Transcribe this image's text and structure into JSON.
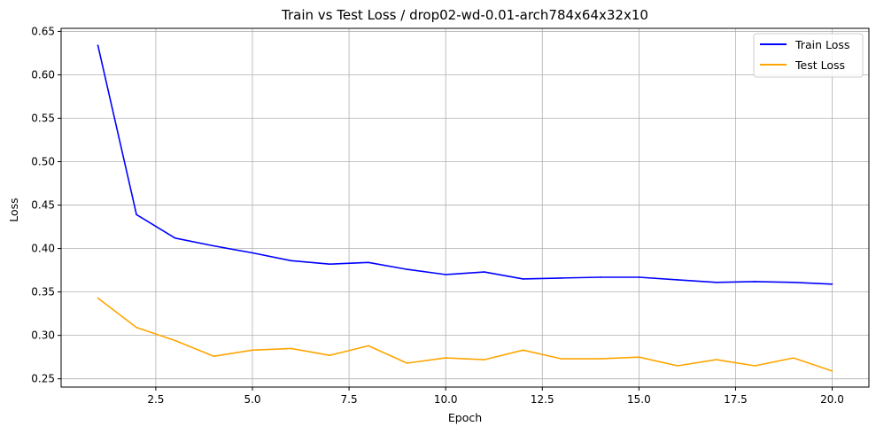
{
  "chart_data": {
    "type": "line",
    "title": "Train vs Test Loss / drop02-wd-0.01-arch784x64x32x10",
    "xlabel": "Epoch",
    "ylabel": "Loss",
    "xlim": [
      0.05,
      20.95
    ],
    "ylim": [
      0.2405,
      0.6535
    ],
    "xticks": [
      2.5,
      5.0,
      7.5,
      10.0,
      12.5,
      15.0,
      17.5,
      20.0
    ],
    "xtick_labels": [
      "2.5",
      "5.0",
      "7.5",
      "10.0",
      "12.5",
      "15.0",
      "17.5",
      "20.0"
    ],
    "yticks": [
      0.25,
      0.3,
      0.35,
      0.4,
      0.45,
      0.5,
      0.55,
      0.6,
      0.65
    ],
    "ytick_labels": [
      "0.25",
      "0.30",
      "0.35",
      "0.40",
      "0.45",
      "0.50",
      "0.55",
      "0.60",
      "0.65"
    ],
    "grid": true,
    "legend_position": "top-right",
    "x": [
      1,
      2,
      3,
      4,
      5,
      6,
      7,
      8,
      9,
      10,
      11,
      12,
      13,
      14,
      15,
      16,
      17,
      18,
      19,
      20
    ],
    "series": [
      {
        "name": "Train Loss",
        "color": "#0000ff",
        "values": [
          0.634,
          0.439,
          0.412,
          0.403,
          0.395,
          0.386,
          0.382,
          0.384,
          0.376,
          0.37,
          0.373,
          0.365,
          0.366,
          0.367,
          0.367,
          0.364,
          0.361,
          0.362,
          0.361,
          0.359
        ]
      },
      {
        "name": "Test Loss",
        "color": "#ffa500",
        "values": [
          0.343,
          0.309,
          0.294,
          0.276,
          0.283,
          0.285,
          0.277,
          0.288,
          0.268,
          0.274,
          0.272,
          0.283,
          0.273,
          0.273,
          0.275,
          0.265,
          0.272,
          0.265,
          0.274,
          0.259
        ]
      }
    ]
  }
}
